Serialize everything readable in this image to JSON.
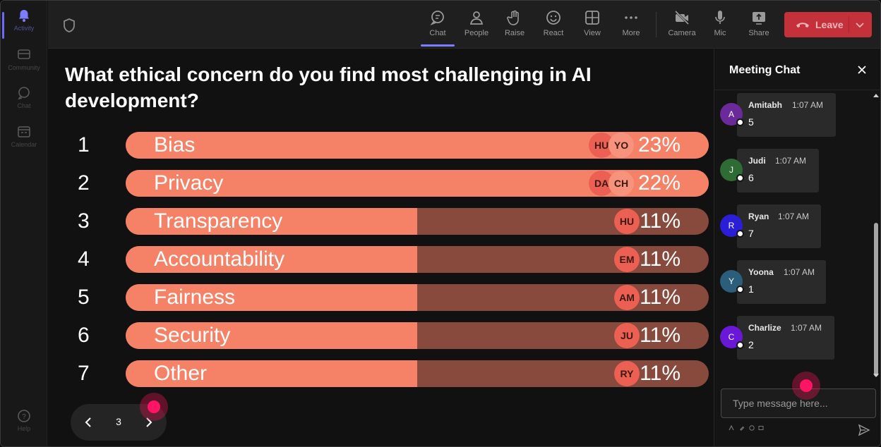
{
  "rail": {
    "items": [
      {
        "label": "Activity",
        "icon": "bell-icon"
      },
      {
        "label": "Community",
        "icon": "community-icon"
      },
      {
        "label": "Chat",
        "icon": "chat-icon"
      },
      {
        "label": "Calendar",
        "icon": "calendar-icon"
      },
      {
        "label": "Help",
        "icon": "help-icon"
      }
    ]
  },
  "toolbar": {
    "buttons": [
      {
        "label": "Chat",
        "icon": "chat-icon"
      },
      {
        "label": "People",
        "icon": "people-icon"
      },
      {
        "label": "Raise",
        "icon": "raise-hand-icon"
      },
      {
        "label": "React",
        "icon": "smiley-icon"
      },
      {
        "label": "View",
        "icon": "grid-icon"
      },
      {
        "label": "More",
        "icon": "more-icon"
      },
      {
        "label": "Camera",
        "icon": "camera-off-icon"
      },
      {
        "label": "Mic",
        "icon": "mic-icon"
      },
      {
        "label": "Share",
        "icon": "share-icon"
      }
    ],
    "leave_label": "Leave",
    "leave_color": "#c4313b"
  },
  "poll": {
    "question": "What ethical concern do you find most challenging in AI development?",
    "options": [
      {
        "num": "1",
        "label": "Bias",
        "percent": "23%",
        "fraction": 0.23,
        "avatars": [
          "HU",
          "YO"
        ]
      },
      {
        "num": "2",
        "label": "Privacy",
        "percent": "22%",
        "fraction": 0.22,
        "avatars": [
          "DA",
          "CH"
        ]
      },
      {
        "num": "3",
        "label": "Transparency",
        "percent": "11%",
        "fraction": 0.11,
        "avatars": [
          "HU"
        ]
      },
      {
        "num": "4",
        "label": "Accountability",
        "percent": "11%",
        "fraction": 0.11,
        "avatars": [
          "EM"
        ]
      },
      {
        "num": "5",
        "label": "Fairness",
        "percent": "11%",
        "fraction": 0.11,
        "avatars": [
          "AM"
        ]
      },
      {
        "num": "6",
        "label": "Security",
        "percent": "11%",
        "fraction": 0.11,
        "avatars": [
          "JU"
        ]
      },
      {
        "num": "7",
        "label": "Other",
        "percent": "11%",
        "fraction": 0.11,
        "avatars": [
          "RY"
        ]
      }
    ],
    "page": "3",
    "bar_fill_color": "#f58266",
    "bar_track_color": "#874a3c"
  },
  "chat": {
    "title": "Meeting Chat",
    "messages": [
      {
        "initial": "A",
        "name": "Amitabh",
        "time": "1:07 AM",
        "text": "5",
        "color": "#6b2a9a"
      },
      {
        "initial": "J",
        "name": "Judi",
        "time": "1:07 AM",
        "text": "6",
        "color": "#2f6b35"
      },
      {
        "initial": "R",
        "name": "Ryan",
        "time": "1:07 AM",
        "text": "7",
        "color": "#2a1fd6"
      },
      {
        "initial": "Y",
        "name": "Yoona",
        "time": "1:07 AM",
        "text": "1",
        "color": "#2a5e7a"
      },
      {
        "initial": "C",
        "name": "Charlize",
        "time": "1:07 AM",
        "text": "2",
        "color": "#6a18d8"
      }
    ],
    "input_placeholder": "Type message here..."
  }
}
